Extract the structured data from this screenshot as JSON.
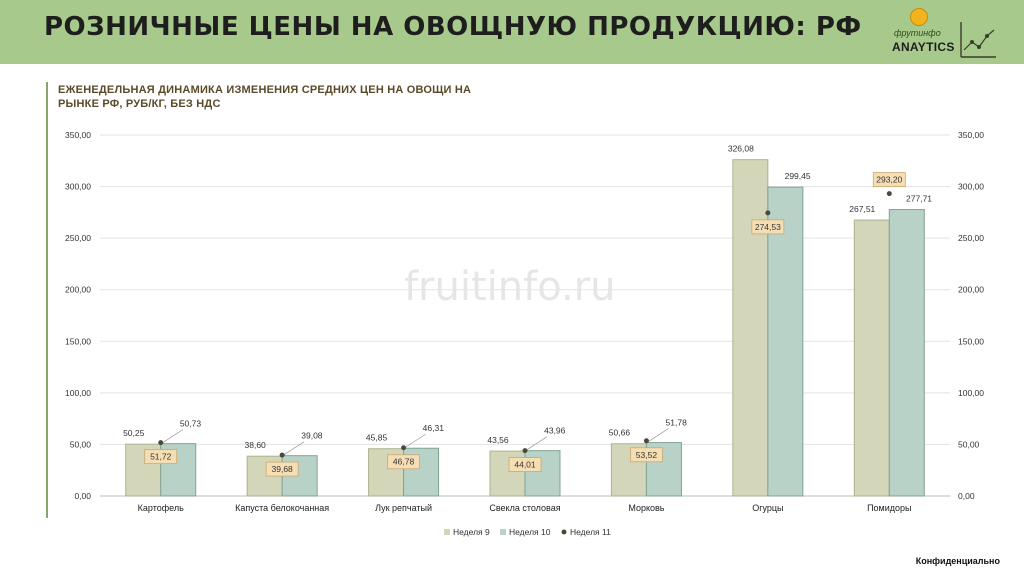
{
  "header": {
    "title": "РОЗНИЧНЫЕ ЦЕНЫ НА ОВОЩНУЮ ПРОДУКЦИЮ: РФ",
    "logo_brand": "фрутинфо",
    "logo_sub": "ANAYTICS"
  },
  "watermark": "fruitinfo.ru",
  "footer": "Конфиденциально",
  "colors": {
    "header_bg": "#a7c98c",
    "week9_fill": "#d3d6b8",
    "week10_fill": "#b9d2c8",
    "week11_marker": "#4a4a3a",
    "label_box": "#f6deb4"
  },
  "chart_data": {
    "type": "bar",
    "title": "ЕЖЕНЕДЕЛЬНАЯ ДИНАМИКА ИЗМЕНЕНИЯ СРЕДНИХ ЦЕН НА ОВОЩИ НА РЫНКЕ РФ, РУБ/КГ, БЕЗ НДС",
    "categories": [
      "Картофель",
      "Капуста белокочанная",
      "Лук репчатый",
      "Свекла столовая",
      "Морковь",
      "Огурцы",
      "Помидоры"
    ],
    "series": [
      {
        "name": "Неделя 9",
        "type": "bar",
        "values": [
          50.25,
          38.6,
          45.85,
          43.56,
          50.66,
          326.08,
          267.51
        ],
        "labels": [
          "50,25",
          "38,60",
          "45,85",
          "43,56",
          "50,66",
          "326,08",
          "267,51"
        ]
      },
      {
        "name": "Неделя 10",
        "type": "bar",
        "values": [
          50.73,
          39.08,
          46.31,
          43.96,
          51.78,
          299.45,
          277.71
        ],
        "labels": [
          "50,73",
          "39,08",
          "46,31",
          "43,96",
          "51,78",
          "299,45",
          "277,71"
        ]
      },
      {
        "name": "Неделя 11",
        "type": "marker",
        "values": [
          51.72,
          39.68,
          46.78,
          44.01,
          53.52,
          274.53,
          293.2
        ],
        "labels": [
          "51,72",
          "39,68",
          "46,78",
          "44,01",
          "53,52",
          "274,53",
          "293,20"
        ]
      }
    ],
    "ylim": [
      0,
      350
    ],
    "yticks": [
      "0,00",
      "50,00",
      "100,00",
      "150,00",
      "200,00",
      "250,00",
      "300,00",
      "350,00"
    ],
    "y_axis_both_sides": true,
    "grid": true,
    "legend_position": "bottom"
  }
}
